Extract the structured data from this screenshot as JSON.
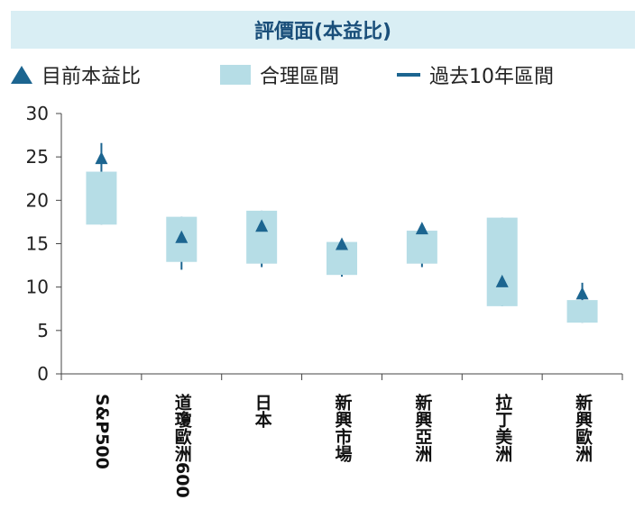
{
  "colors": {
    "title_bg": "#d9eef4",
    "title_text": "#1a4f7a",
    "triangle": "#1c6590",
    "box": "#b6dde6",
    "whisker": "#1c6590",
    "axis": "#444444"
  },
  "chart_data": {
    "type": "box-range",
    "title": "評價面(本益比)",
    "legend": {
      "current": "目前本益比",
      "fair_range": "合理區間",
      "ten_year_range": "過去10年區間"
    },
    "ylim": [
      0,
      30
    ],
    "yticks": [
      0,
      5,
      10,
      15,
      20,
      25,
      30
    ],
    "categories": [
      "S&P500",
      "道瓊歐洲600",
      "日本",
      "新興市場",
      "新興亞洲",
      "拉丁美洲",
      "新興歐洲"
    ],
    "series": [
      {
        "name": "目前本益比",
        "values": [
          24.8,
          15.7,
          17.0,
          14.9,
          16.7,
          10.6,
          9.2
        ]
      },
      {
        "name": "合理區間",
        "low": [
          17.2,
          12.9,
          12.7,
          11.4,
          12.7,
          7.8,
          5.9
        ],
        "high": [
          23.3,
          18.1,
          18.8,
          15.2,
          16.5,
          18.0,
          8.5
        ]
      },
      {
        "name": "過去10年區間",
        "low": [
          17.2,
          12.0,
          12.3,
          11.2,
          12.3,
          7.8,
          5.9
        ],
        "high": [
          26.6,
          18.1,
          18.8,
          15.2,
          16.5,
          18.0,
          10.5
        ]
      }
    ],
    "grid": false,
    "legend_position": "top"
  }
}
